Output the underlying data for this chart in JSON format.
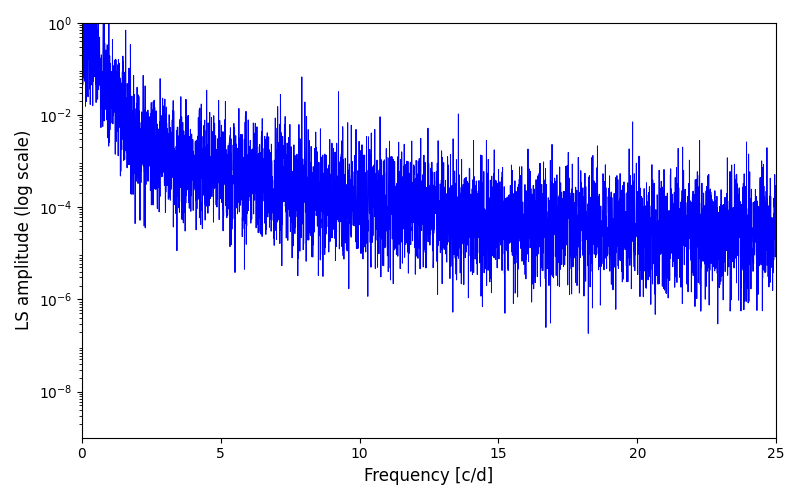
{
  "xlabel": "Frequency [c/d]",
  "ylabel": "LS amplitude (log scale)",
  "xlim": [
    0,
    25
  ],
  "ylim": [
    1e-09,
    1.0
  ],
  "line_color": "#0000ff",
  "line_width": 0.7,
  "background_color": "#ffffff",
  "freq_max": 25.0,
  "n_points": 5000,
  "seed": 7,
  "peak_amplitude": 0.7,
  "noise_sigma": 1.5,
  "figsize": [
    8.0,
    5.0
  ],
  "dpi": 100,
  "yticks": [
    1e-08,
    1e-06,
    0.0001,
    0.01,
    1.0
  ]
}
